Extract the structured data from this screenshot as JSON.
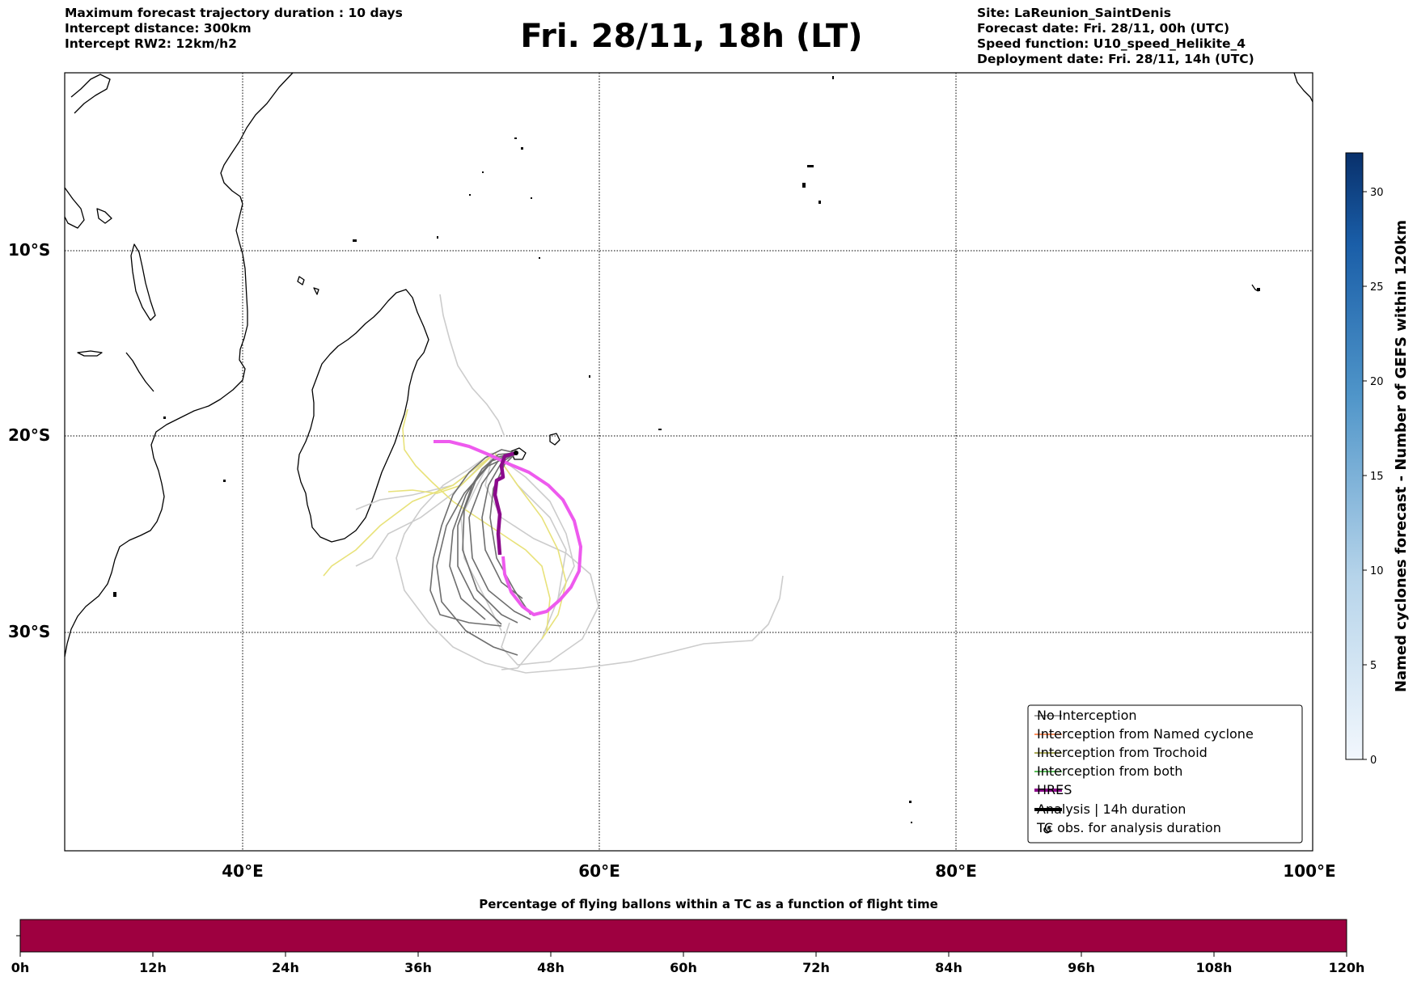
{
  "header": {
    "left_lines": [
      "Maximum forecast trajectory duration : 10 days",
      "Intercept distance: 300km",
      "Intercept RW2: 12km/h2"
    ],
    "title": "Fri. 28/11, 18h (LT)",
    "right_lines": [
      "Site: LaReunion_SaintDenis",
      "Forecast date: Fri. 28/11, 00h (UTC)",
      "Speed function: U10_speed_Helikite_4",
      "Deployment date: Fri. 28/11, 14h (UTC)"
    ]
  },
  "map": {
    "lat_labels": [
      "10°S",
      "20°S",
      "30°S"
    ],
    "lon_labels": [
      "40°E",
      "60°E",
      "80°E",
      "100°E"
    ]
  },
  "legend": {
    "items": [
      {
        "label": "No Interception",
        "color": "#808080"
      },
      {
        "label": "Interception from Named cyclone",
        "color": "#ff6a2a"
      },
      {
        "label": "Interception from Trochoid",
        "color": "#8b8b1a"
      },
      {
        "label": "Interception from both",
        "color": "#22aa22"
      },
      {
        "label": "HRES",
        "color": "#8b0a8b"
      },
      {
        "label": "Analysis | 14h duration",
        "color": "#000000"
      },
      {
        "label": "TC obs. for analysis duration",
        "color": "#000000"
      }
    ]
  },
  "colorbar_right": {
    "label": "Named cyclones forecast - Number of GEFS within 120km",
    "ticks": [
      "0",
      "5",
      "10",
      "15",
      "20",
      "25",
      "30"
    ]
  },
  "colorbar_bottom": {
    "title": "Percentage of flying ballons within a TC as a function of flight time",
    "ticks": [
      "0h",
      "12h",
      "24h",
      "36h",
      "48h",
      "60h",
      "72h",
      "84h",
      "96h",
      "108h",
      "120h"
    ],
    "fill_color": "#9e0040"
  },
  "colors": {
    "hres": "#8b0a8b",
    "hres_ensemble": "#ee5aee",
    "trajectories_dark": "#6e6e6e",
    "trajectories_light": "#cccccc",
    "trajectories_yellow": "#e8e27a"
  }
}
